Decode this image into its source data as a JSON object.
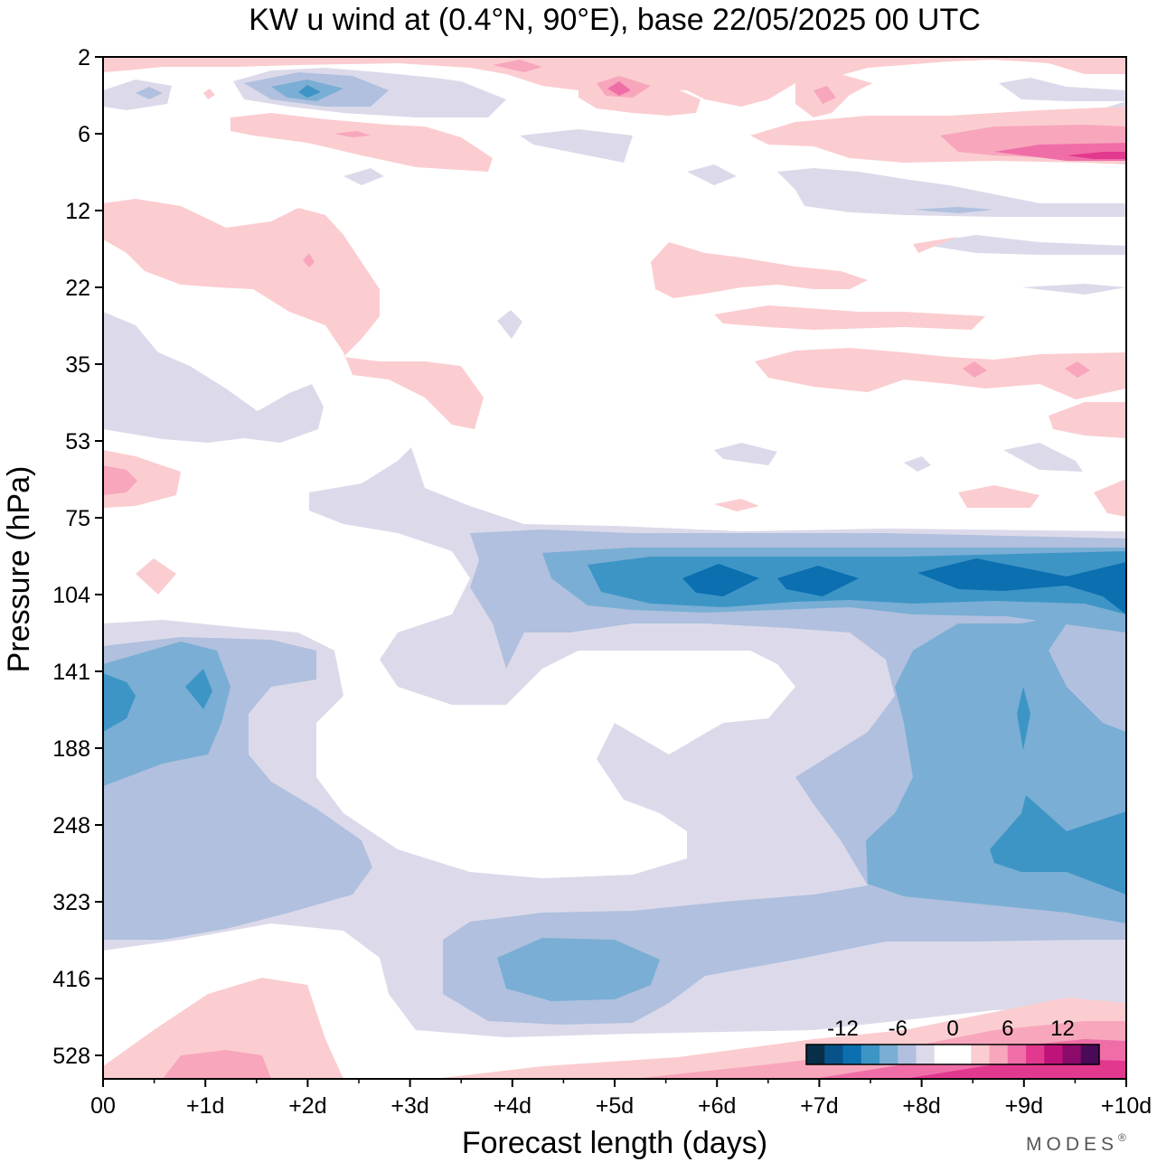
{
  "chart_data": {
    "type": "heatmap",
    "subtype": "filled-contour",
    "title": "KW u wind at (0.4°N, 90°E),  base 22/05/2025  00 UTC",
    "xlabel": "Forecast length (days)",
    "ylabel": "Pressure (hPa)",
    "x_ticks": [
      "00",
      "+1d",
      "+2d",
      "+3d",
      "+4d",
      "+5d",
      "+6d",
      "+7d",
      "+8d",
      "+9d",
      "+10d"
    ],
    "y_ticks": [
      "2",
      "6",
      "12",
      "22",
      "35",
      "53",
      "75",
      "104",
      "141",
      "188",
      "248",
      "323",
      "416",
      "528"
    ],
    "x_range_days": [
      0,
      10
    ],
    "y_scale": "log (reversed)",
    "colorbar": {
      "levels": [
        -16,
        -14,
        -12,
        -10,
        -8,
        -6,
        -4,
        -2,
        0,
        2,
        4,
        6,
        8,
        10,
        12,
        14,
        16
      ],
      "tick_labels": [
        "-12",
        "-6",
        "0",
        "6",
        "12"
      ],
      "colors": [
        "#082f48",
        "#08528a",
        "#0b6fb0",
        "#3d95c6",
        "#7aaed4",
        "#b0c0de",
        "#dcdaea",
        "#ffffff",
        "#ffffff",
        "#fbcdd0",
        "#f8a6bc",
        "#f06ea8",
        "#e2398f",
        "#c0137a",
        "#8c0a6a",
        "#4a0a57"
      ]
    },
    "features": [
      {
        "sign": "negative",
        "p_range_hPa": [
          85,
          120
        ],
        "day_range": [
          3.5,
          10
        ],
        "min_ms": -14
      },
      {
        "sign": "negative",
        "p_range_hPa": [
          120,
          420
        ],
        "day_range": [
          0,
          2.7
        ],
        "min_ms": -10
      },
      {
        "sign": "negative",
        "p_range_hPa": [
          120,
          380
        ],
        "day_range": [
          7.8,
          10
        ],
        "min_ms": -10
      },
      {
        "sign": "negative",
        "p_range_hPa": [
          350,
          480
        ],
        "day_range": [
          3.2,
          7.3
        ],
        "min_ms": -8
      },
      {
        "sign": "positive",
        "p_range_hPa": [
          450,
          600
        ],
        "day_range": [
          0,
          10
        ],
        "max_ms": 8
      },
      {
        "sign": "positive",
        "p_range_hPa": [
          2,
          12
        ],
        "day_range": [
          0,
          10
        ],
        "max_ms": 12
      },
      {
        "sign": "positive",
        "p_range_hPa": [
          12,
          60
        ],
        "day_range": [
          0,
          4.0
        ],
        "max_ms": 4
      }
    ]
  },
  "branding": {
    "logo_text": "MODES",
    "registered_mark": "®"
  }
}
